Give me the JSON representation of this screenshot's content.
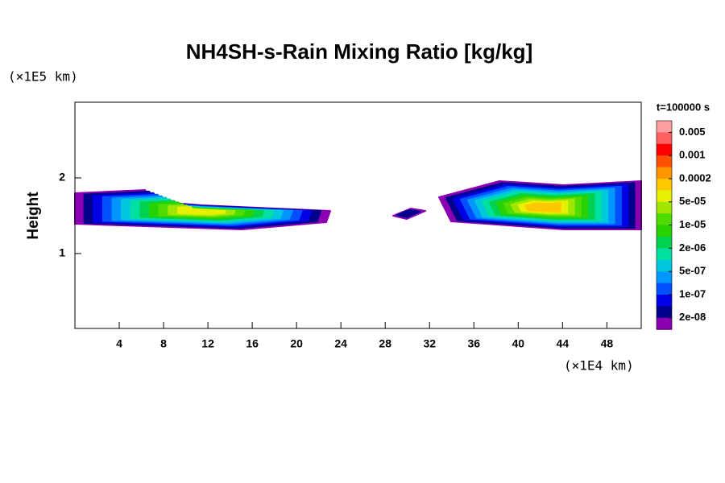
{
  "chart_data": {
    "type": "contour",
    "title": "NH4SH-s-Rain Mixing Ratio [kg/kg]",
    "y_label": "Height",
    "y_unit": "(×1E5 km)",
    "x_unit": "(×1E4 km)",
    "colorbar_title": "t=100000 s",
    "xlim": [
      0,
      51.1
    ],
    "xticks": [
      4,
      8,
      12,
      16,
      20,
      24,
      28,
      32,
      36,
      40,
      44,
      48
    ],
    "ylim": [
      0.01,
      3
    ],
    "yticks": [
      1,
      2
    ],
    "colors": [
      "#ffa0a0",
      "#ff6060",
      "#ff0000",
      "#ff5000",
      "#ff9600",
      "#ffc800",
      "#e6f000",
      "#a0e600",
      "#50dc00",
      "#28d200",
      "#00d250",
      "#00e0a0",
      "#00c8dc",
      "#0096ff",
      "#0050ff",
      "#0000e6",
      "#00008c",
      "#8c00b4"
    ],
    "levels": [
      {
        "value": 0.005,
        "label": "0.005"
      },
      {
        "value": 0.001,
        "label": "0.001"
      },
      {
        "value": 0.0002,
        "label": "0.0002"
      },
      {
        "value": 5e-05,
        "label": "5e-05"
      },
      {
        "value": 1e-05,
        "label": "1e-05"
      },
      {
        "value": 2e-06,
        "label": "2e-06"
      },
      {
        "value": 5e-07,
        "label": "5e-07"
      },
      {
        "value": 1e-07,
        "label": "1e-07"
      },
      {
        "value": 2e-08,
        "label": "2e-08"
      }
    ]
  }
}
